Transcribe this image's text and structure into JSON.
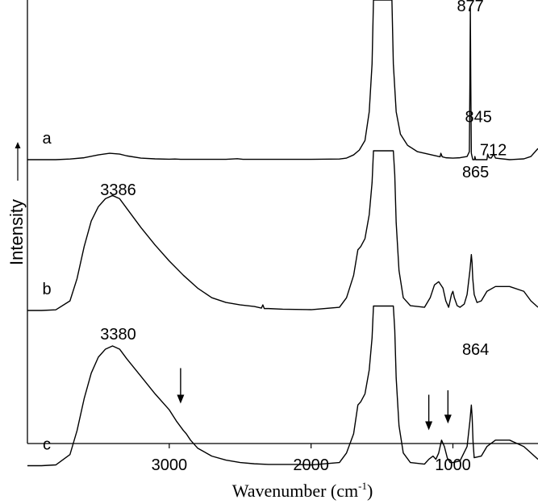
{
  "chart_data": {
    "type": "line",
    "title": "",
    "xlabel_main": "Wavenumber (cm",
    "xlabel_sup": "-1",
    "xlabel_close": ")",
    "ylabel": "Intensity",
    "xlim": [
      4000,
      400
    ],
    "x_reversed": true,
    "xticks": [
      3000,
      2000,
      1000
    ],
    "xtick_labels": [
      "3000",
      "2000",
      "1000"
    ],
    "grid": false,
    "series": [
      {
        "name": "a",
        "offset": 0.64,
        "scale": 0.36,
        "points": [
          [
            4000,
            0.0
          ],
          [
            3800,
            0.0
          ],
          [
            3700,
            0.004
          ],
          [
            3600,
            0.012
          ],
          [
            3500,
            0.03
          ],
          [
            3420,
            0.04
          ],
          [
            3350,
            0.035
          ],
          [
            3300,
            0.024
          ],
          [
            3200,
            0.01
          ],
          [
            3100,
            0.005
          ],
          [
            3000,
            0.003
          ],
          [
            2960,
            0.004
          ],
          [
            2920,
            0.002
          ],
          [
            2600,
            0.002
          ],
          [
            2520,
            0.006
          ],
          [
            2480,
            0.002
          ],
          [
            2000,
            0.002
          ],
          [
            1800,
            0.004
          ],
          [
            1750,
            0.01
          ],
          [
            1700,
            0.03
          ],
          [
            1660,
            0.06
          ],
          [
            1620,
            0.12
          ],
          [
            1590,
            0.3
          ],
          [
            1570,
            0.6
          ],
          [
            1560,
            1.0
          ],
          [
            1500,
            1.0
          ],
          [
            1450,
            1.0
          ],
          [
            1430,
            1.0
          ],
          [
            1420,
            0.6
          ],
          [
            1400,
            0.3
          ],
          [
            1370,
            0.16
          ],
          [
            1320,
            0.09
          ],
          [
            1250,
            0.05
          ],
          [
            1150,
            0.03
          ],
          [
            1090,
            0.018
          ],
          [
            1085,
            0.04
          ],
          [
            1075,
            0.018
          ],
          [
            1050,
            0.012
          ],
          [
            1000,
            0.01
          ],
          [
            950,
            0.012
          ],
          [
            900,
            0.02
          ],
          [
            884,
            0.05
          ],
          [
            880,
            0.5
          ],
          [
            877,
            0.95
          ],
          [
            874,
            0.5
          ],
          [
            870,
            0.04
          ],
          [
            860,
            0.0
          ],
          [
            848,
            0.0
          ],
          [
            845,
            0.02
          ],
          [
            840,
            0.0
          ],
          [
            800,
            0.0
          ],
          [
            760,
            0.0
          ],
          [
            755,
            0.035
          ],
          [
            745,
            0.012
          ],
          [
            730,
            0.01
          ],
          [
            712,
            0.035
          ],
          [
            700,
            0.01
          ],
          [
            600,
            0.0
          ],
          [
            500,
            0.005
          ],
          [
            450,
            0.02
          ],
          [
            400,
            0.07
          ]
        ]
      },
      {
        "name": "b",
        "offset": 0.3,
        "scale": 0.36,
        "points": [
          [
            4000,
            0.0
          ],
          [
            3900,
            0.0
          ],
          [
            3800,
            0.004
          ],
          [
            3700,
            0.06
          ],
          [
            3650,
            0.2
          ],
          [
            3600,
            0.4
          ],
          [
            3550,
            0.56
          ],
          [
            3500,
            0.65
          ],
          [
            3450,
            0.7
          ],
          [
            3400,
            0.72
          ],
          [
            3350,
            0.7
          ],
          [
            3300,
            0.64
          ],
          [
            3200,
            0.52
          ],
          [
            3100,
            0.41
          ],
          [
            3000,
            0.31
          ],
          [
            2900,
            0.22
          ],
          [
            2800,
            0.14
          ],
          [
            2700,
            0.08
          ],
          [
            2600,
            0.05
          ],
          [
            2500,
            0.035
          ],
          [
            2400,
            0.025
          ],
          [
            2350,
            0.015
          ],
          [
            2340,
            0.035
          ],
          [
            2330,
            0.012
          ],
          [
            2300,
            0.012
          ],
          [
            2200,
            0.008
          ],
          [
            2000,
            0.005
          ],
          [
            1800,
            0.02
          ],
          [
            1750,
            0.08
          ],
          [
            1700,
            0.22
          ],
          [
            1670,
            0.38
          ],
          [
            1650,
            0.4
          ],
          [
            1620,
            0.45
          ],
          [
            1590,
            0.6
          ],
          [
            1570,
            0.8
          ],
          [
            1560,
            1.0
          ],
          [
            1500,
            1.0
          ],
          [
            1420,
            1.0
          ],
          [
            1410,
            0.85
          ],
          [
            1400,
            0.55
          ],
          [
            1380,
            0.25
          ],
          [
            1350,
            0.08
          ],
          [
            1300,
            0.03
          ],
          [
            1200,
            0.02
          ],
          [
            1160,
            0.08
          ],
          [
            1130,
            0.16
          ],
          [
            1100,
            0.18
          ],
          [
            1070,
            0.14
          ],
          [
            1050,
            0.06
          ],
          [
            1030,
            0.02
          ],
          [
            1010,
            0.1
          ],
          [
            1000,
            0.12
          ],
          [
            990,
            0.08
          ],
          [
            970,
            0.03
          ],
          [
            950,
            0.02
          ],
          [
            920,
            0.04
          ],
          [
            900,
            0.1
          ],
          [
            880,
            0.25
          ],
          [
            870,
            0.35
          ],
          [
            865,
            0.3
          ],
          [
            860,
            0.2
          ],
          [
            850,
            0.1
          ],
          [
            830,
            0.05
          ],
          [
            800,
            0.06
          ],
          [
            760,
            0.12
          ],
          [
            700,
            0.15
          ],
          [
            600,
            0.15
          ],
          [
            500,
            0.12
          ],
          [
            450,
            0.06
          ],
          [
            400,
            0.02
          ]
        ]
      },
      {
        "name": "c",
        "offset": -0.05,
        "scale": 0.36,
        "points": [
          [
            4000,
            0.0
          ],
          [
            3900,
            0.0
          ],
          [
            3800,
            0.005
          ],
          [
            3700,
            0.07
          ],
          [
            3650,
            0.22
          ],
          [
            3600,
            0.42
          ],
          [
            3550,
            0.58
          ],
          [
            3500,
            0.68
          ],
          [
            3450,
            0.73
          ],
          [
            3400,
            0.75
          ],
          [
            3350,
            0.73
          ],
          [
            3300,
            0.67
          ],
          [
            3200,
            0.56
          ],
          [
            3100,
            0.45
          ],
          [
            3000,
            0.35
          ],
          [
            2950,
            0.28
          ],
          [
            2900,
            0.22
          ],
          [
            2880,
            0.2
          ],
          [
            2850,
            0.16
          ],
          [
            2800,
            0.11
          ],
          [
            2700,
            0.06
          ],
          [
            2600,
            0.035
          ],
          [
            2500,
            0.02
          ],
          [
            2400,
            0.012
          ],
          [
            2300,
            0.008
          ],
          [
            2100,
            0.008
          ],
          [
            2000,
            0.005
          ],
          [
            1800,
            0.02
          ],
          [
            1750,
            0.08
          ],
          [
            1700,
            0.2
          ],
          [
            1670,
            0.38
          ],
          [
            1650,
            0.4
          ],
          [
            1620,
            0.45
          ],
          [
            1590,
            0.6
          ],
          [
            1570,
            0.8
          ],
          [
            1560,
            1.0
          ],
          [
            1500,
            1.0
          ],
          [
            1420,
            1.0
          ],
          [
            1410,
            0.85
          ],
          [
            1400,
            0.55
          ],
          [
            1380,
            0.25
          ],
          [
            1350,
            0.08
          ],
          [
            1300,
            0.02
          ],
          [
            1200,
            0.01
          ],
          [
            1170,
            0.04
          ],
          [
            1140,
            0.06
          ],
          [
            1120,
            0.04
          ],
          [
            1100,
            0.08
          ],
          [
            1080,
            0.16
          ],
          [
            1060,
            0.12
          ],
          [
            1040,
            0.05
          ],
          [
            1020,
            0.02
          ],
          [
            1000,
            0.02
          ],
          [
            950,
            0.03
          ],
          [
            900,
            0.12
          ],
          [
            880,
            0.28
          ],
          [
            870,
            0.38
          ],
          [
            864,
            0.3
          ],
          [
            858,
            0.15
          ],
          [
            850,
            0.05
          ],
          [
            800,
            0.06
          ],
          [
            760,
            0.12
          ],
          [
            700,
            0.16
          ],
          [
            600,
            0.16
          ],
          [
            500,
            0.12
          ],
          [
            450,
            0.08
          ],
          [
            400,
            0.04
          ]
        ]
      }
    ],
    "series_labels": [
      {
        "text": "a",
        "series": 0
      },
      {
        "text": "b",
        "series": 1
      },
      {
        "text": "c",
        "series": 2
      }
    ],
    "annotations": [
      {
        "text": "877",
        "x": 877,
        "y": 0.975
      },
      {
        "text": "845",
        "x": 820,
        "y": 0.725
      },
      {
        "text": "712",
        "x": 715,
        "y": 0.65
      },
      {
        "text": "3386",
        "x": 3360,
        "y": 0.56
      },
      {
        "text": "865",
        "x": 840,
        "y": 0.6
      },
      {
        "text": "3380",
        "x": 3360,
        "y": 0.235
      },
      {
        "text": "864",
        "x": 840,
        "y": 0.2
      }
    ],
    "arrows": [
      {
        "x": 2920,
        "y_top": 0.17,
        "y_tip": 0.09
      },
      {
        "x": 1170,
        "y_top": 0.11,
        "y_tip": 0.03
      },
      {
        "x": 1035,
        "y_top": 0.12,
        "y_tip": 0.045
      }
    ]
  }
}
